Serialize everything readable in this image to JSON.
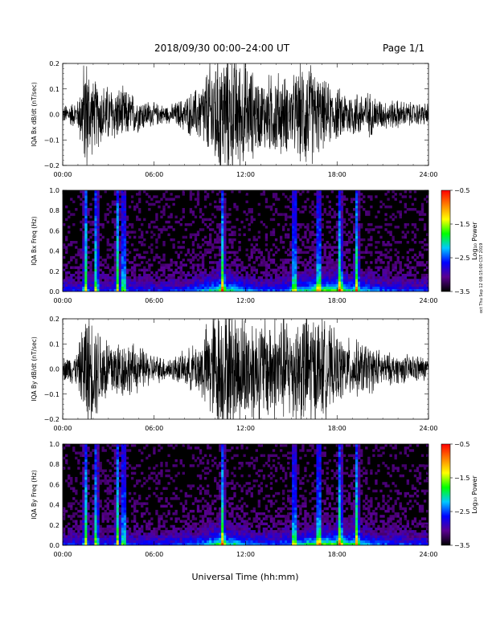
{
  "header": {
    "title": "2018/09/30   00:00–24:00 UT",
    "page": "Page 1/1"
  },
  "stamp": "oct Thu Sep 12 08:15:00 CST 2019",
  "xlabel": "Universal Time (hh:mm)",
  "colors": {
    "trace": "#000000",
    "frame": "#000000",
    "colorbar": [
      "#000000",
      "#5a0090",
      "#0000ff",
      "#00c8ff",
      "#00ff00",
      "#ffff00",
      "#ff8000",
      "#ff0000"
    ]
  },
  "chart_data": [
    {
      "type": "line",
      "ylabel": "IQA Bx dB/dt (nT/sec)",
      "x_ticks": [
        "00:00",
        "06:00",
        "12:00",
        "18:00",
        "24:00"
      ],
      "xlim": [
        0,
        24
      ],
      "y_ticks": [
        "0.2",
        "0.1",
        "0.0",
        "−0.1",
        "−0.2"
      ],
      "y_tick_values": [
        0.2,
        0.1,
        0.0,
        -0.1,
        -0.2
      ],
      "ylim": [
        -0.2,
        0.2
      ],
      "envelope_hours": [
        0,
        1,
        1.5,
        2,
        3,
        4,
        5,
        6,
        7,
        8,
        9,
        10,
        11,
        12,
        13,
        14,
        15,
        16,
        17,
        18,
        19,
        20,
        21,
        22,
        23,
        24
      ],
      "envelope_amplitude": [
        0.03,
        0.05,
        0.22,
        0.12,
        0.1,
        0.09,
        0.06,
        0.04,
        0.03,
        0.06,
        0.1,
        0.22,
        0.22,
        0.18,
        0.12,
        0.15,
        0.12,
        0.2,
        0.12,
        0.09,
        0.08,
        0.08,
        0.05,
        0.05,
        0.04,
        0.04
      ]
    },
    {
      "type": "heatmap",
      "ylabel": "IQA Bx Freq (Hz)",
      "x_ticks": [
        "00:00",
        "06:00",
        "12:00",
        "18:00",
        "24:00"
      ],
      "xlim": [
        0,
        24
      ],
      "y_ticks": [
        "1.0",
        "0.8",
        "0.6",
        "0.4",
        "0.2",
        "0.0"
      ],
      "y_tick_values": [
        1.0,
        0.8,
        0.6,
        0.4,
        0.2,
        0.0
      ],
      "ylim": [
        0,
        1.0
      ],
      "colorbar": {
        "label": "Log₁₀ Power",
        "ticks": [
          "−0.5",
          "−1.5",
          "−2.5",
          "−3.5"
        ],
        "tick_values": [
          -0.5,
          -1.5,
          -2.5,
          -3.5
        ],
        "range": [
          -3.5,
          -0.5
        ]
      },
      "bursts_hours": [
        1.5,
        2.2,
        3.6,
        4.0,
        10.5,
        15.2,
        16.8,
        18.2,
        19.3
      ]
    },
    {
      "type": "line",
      "ylabel": "IQA By dB/dt (nT/sec)",
      "x_ticks": [
        "00:00",
        "06:00",
        "12:00",
        "18:00",
        "24:00"
      ],
      "xlim": [
        0,
        24
      ],
      "y_ticks": [
        "0.2",
        "0.1",
        "0.0",
        "−0.1",
        "−0.2"
      ],
      "y_tick_values": [
        0.2,
        0.1,
        0.0,
        -0.1,
        -0.2
      ],
      "ylim": [
        -0.2,
        0.2
      ],
      "envelope_hours": [
        0,
        1,
        1.5,
        2,
        3,
        4,
        5,
        6,
        7,
        8,
        9,
        10,
        11,
        12,
        13,
        14,
        15,
        16,
        17,
        18,
        19,
        20,
        21,
        22,
        23,
        24
      ],
      "envelope_amplitude": [
        0.04,
        0.06,
        0.22,
        0.18,
        0.12,
        0.1,
        0.08,
        0.05,
        0.04,
        0.06,
        0.1,
        0.22,
        0.22,
        0.2,
        0.18,
        0.2,
        0.18,
        0.22,
        0.18,
        0.12,
        0.1,
        0.09,
        0.06,
        0.05,
        0.05,
        0.04
      ]
    },
    {
      "type": "heatmap",
      "ylabel": "IQA By Freq (Hz)",
      "x_ticks": [
        "00:00",
        "06:00",
        "12:00",
        "18:00",
        "24:00"
      ],
      "xlim": [
        0,
        24
      ],
      "y_ticks": [
        "1.0",
        "0.8",
        "0.6",
        "0.4",
        "0.2",
        "0.0"
      ],
      "y_tick_values": [
        1.0,
        0.8,
        0.6,
        0.4,
        0.2,
        0.0
      ],
      "ylim": [
        0,
        1.0
      ],
      "colorbar": {
        "label": "Log₁₀ Power",
        "ticks": [
          "−0.5",
          "−1.5",
          "−2.5",
          "−3.5"
        ],
        "tick_values": [
          -0.5,
          -1.5,
          -2.5,
          -3.5
        ],
        "range": [
          -3.5,
          -0.5
        ]
      },
      "bursts_hours": [
        1.5,
        2.2,
        3.6,
        4.0,
        10.5,
        15.2,
        16.8,
        18.2,
        19.3
      ]
    }
  ]
}
